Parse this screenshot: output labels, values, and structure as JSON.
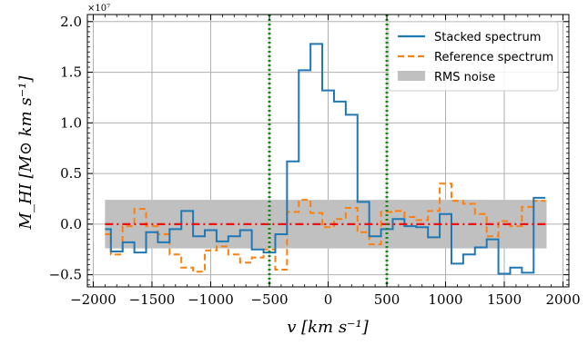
{
  "chart_data": {
    "type": "line",
    "xlabel": "v [km s⁻¹]",
    "ylabel": "M_HI [M⊙ km s⁻¹]",
    "y_multiplier_label": "×10⁷",
    "xlim": [
      -2050,
      2050
    ],
    "ylim": [
      -0.62,
      2.07
    ],
    "x_ticks": [
      -2000,
      -1500,
      -1000,
      -500,
      0,
      500,
      1000,
      1500,
      2000
    ],
    "x_tick_labels": [
      "−2000",
      "−1500",
      "−1000",
      "−500",
      "0",
      "500",
      "1000",
      "1500",
      "2000"
    ],
    "y_ticks": [
      -0.5,
      0.0,
      0.5,
      1.0,
      1.5,
      2.0
    ],
    "y_tick_labels": [
      "−0.5",
      "0.0",
      "0.5",
      "1.0",
      "1.5",
      "2.0"
    ],
    "grid": true,
    "legend_position": "top-right",
    "rms_band": {
      "name": "RMS noise",
      "x_range": [
        -1900,
        1860
      ],
      "y_range": [
        -0.24,
        0.24
      ],
      "color": "#c0c0c0"
    },
    "velocity_markers": {
      "x": [
        -500,
        500
      ],
      "color": "#118811"
    },
    "zero_line": {
      "y": 0,
      "x_range": [
        -1900,
        1860
      ],
      "color": "#ee1111"
    },
    "series": [
      {
        "name": "Stacked spectrum",
        "color": "#1f77b4",
        "style": "solid-step",
        "edges": [
          -1900,
          -1850,
          -1750,
          -1650,
          -1550,
          -1450,
          -1350,
          -1250,
          -1150,
          -1050,
          -950,
          -850,
          -750,
          -650,
          -550,
          -450,
          -350,
          -250,
          -150,
          -50,
          50,
          150,
          250,
          350,
          450,
          550,
          650,
          750,
          850,
          950,
          1050,
          1150,
          1250,
          1350,
          1450,
          1550,
          1650,
          1750,
          1850
        ],
        "values": [
          -0.05,
          -0.27,
          -0.18,
          -0.28,
          -0.08,
          -0.18,
          -0.05,
          0.13,
          -0.12,
          -0.06,
          -0.17,
          -0.12,
          -0.06,
          -0.25,
          -0.28,
          -0.1,
          0.62,
          1.52,
          1.78,
          1.32,
          1.21,
          1.08,
          0.22,
          -0.12,
          -0.05,
          0.05,
          -0.02,
          -0.03,
          -0.13,
          0.1,
          -0.39,
          -0.3,
          -0.23,
          -0.15,
          -0.49,
          -0.43,
          -0.48,
          0.26
        ]
      },
      {
        "name": "Reference spectrum",
        "color": "#ff7f0e",
        "style": "dashed-step",
        "edges": [
          -1900,
          -1850,
          -1750,
          -1650,
          -1550,
          -1450,
          -1350,
          -1250,
          -1150,
          -1050,
          -950,
          -850,
          -750,
          -650,
          -550,
          -450,
          -350,
          -250,
          -150,
          -50,
          50,
          150,
          250,
          350,
          450,
          550,
          650,
          750,
          850,
          950,
          1050,
          1150,
          1250,
          1350,
          1450,
          1550,
          1650,
          1750,
          1850
        ],
        "values": [
          -0.1,
          -0.3,
          -0.02,
          0.15,
          -0.02,
          -0.1,
          -0.3,
          -0.43,
          -0.47,
          -0.26,
          -0.22,
          -0.3,
          -0.38,
          -0.33,
          -0.25,
          -0.45,
          0.12,
          0.24,
          0.11,
          -0.03,
          0.05,
          0.16,
          -0.08,
          -0.2,
          0.12,
          0.13,
          0.07,
          0.04,
          0.13,
          0.4,
          0.23,
          0.2,
          0.1,
          -0.12,
          0.03,
          -0.02,
          0.17,
          0.23
        ]
      }
    ]
  }
}
